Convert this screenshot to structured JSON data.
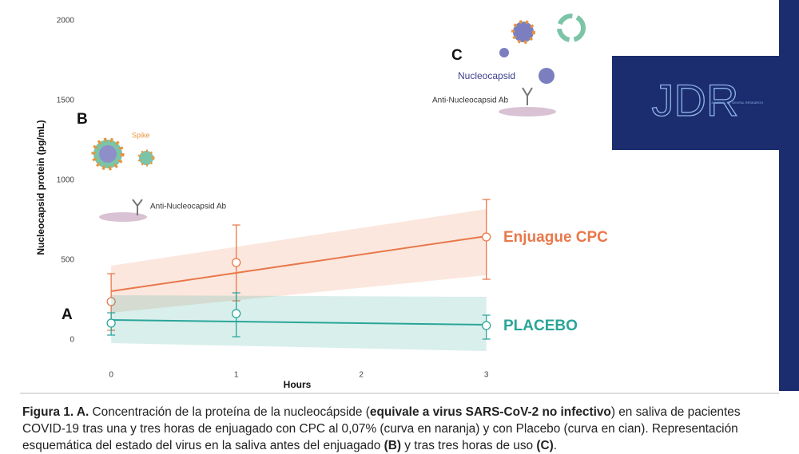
{
  "chart_data": {
    "type": "line",
    "ylabel": "Nucleocapsid protein (pg/mL)",
    "xlabel": "Hours",
    "xlim": [
      -0.25,
      3.2
    ],
    "xticks": [
      0,
      1,
      2,
      3
    ],
    "ylim": [
      -80,
      2060
    ],
    "yticks": [
      0,
      500,
      1000,
      1500,
      2000
    ],
    "series": [
      {
        "name": "Enjuague CPC",
        "color": "#e8784a",
        "x": [
          0,
          1,
          3
        ],
        "values": [
          240,
          485,
          645
        ],
        "lower": [
          60,
          245,
          380
        ],
        "upper": [
          415,
          720,
          880
        ],
        "fit_x": [
          0,
          3
        ],
        "fit_values": [
          305,
          650
        ],
        "band_lower": [
          170,
          405
        ],
        "band_upper": [
          465,
          820
        ]
      },
      {
        "name": "PLACEBO",
        "color": "#2aa598",
        "x": [
          0,
          1,
          3
        ],
        "values": [
          105,
          165,
          90
        ],
        "lower": [
          30,
          20,
          5
        ],
        "upper": [
          170,
          295,
          155
        ],
        "fit_x": [
          0,
          3
        ],
        "fit_values": [
          125,
          95
        ],
        "band_lower": [
          -20,
          -70
        ],
        "band_upper": [
          280,
          270
        ]
      }
    ]
  },
  "panels": {
    "a": "A",
    "b": "B",
    "c": "C"
  },
  "illustration": {
    "spike": "Spike",
    "antibody_b": "Anti-Nucleocapsid Ab",
    "nucleocapsid": "Nucleocapsid",
    "antibody_c": "Anti-Nucleocapsid Ab"
  },
  "logo": {
    "title": "JDR",
    "subtitle": "JOURNAL OF DENTAL RESEARCH"
  },
  "caption": {
    "parts": [
      {
        "text": "Figura 1. A.",
        "bold": true
      },
      {
        "text": " Concentración de la proteína de la nucleocápside (",
        "bold": false
      },
      {
        "text": "equivale a virus SARS-CoV-2 no infectivo",
        "bold": true
      },
      {
        "text": ") en saliva de pacientes COVID-19 tras una y tres horas de enjuagado con CPC al 0,07% (curva en naranja) y con Placebo (curva en cian). Representación esquemática del estado del virus en la saliva antes del enjuagado ",
        "bold": false
      },
      {
        "text": "(B)",
        "bold": true
      },
      {
        "text": " y tras tres horas de uso ",
        "bold": false
      },
      {
        "text": "(C)",
        "bold": true
      },
      {
        "text": ".",
        "bold": false
      }
    ]
  }
}
